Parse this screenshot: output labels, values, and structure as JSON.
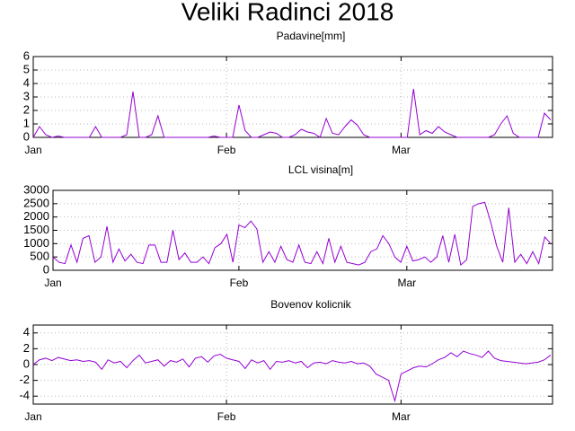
{
  "title": "Veliki Radinci 2018",
  "chart_data": [
    {
      "type": "line",
      "title": "Padavine[mm]",
      "x": [
        0,
        1,
        2,
        3,
        4,
        5,
        6,
        7,
        8,
        9,
        10,
        11,
        12,
        13,
        14,
        15,
        16,
        17,
        18,
        19,
        20,
        21,
        22,
        23,
        24,
        25,
        26,
        27,
        28,
        29,
        30,
        31,
        32,
        33,
        34,
        35,
        36,
        37,
        38,
        39,
        40,
        41,
        42,
        43,
        44,
        45,
        46,
        47,
        48,
        49,
        50,
        51,
        52,
        53,
        54,
        55,
        56,
        57,
        58,
        59,
        60,
        61,
        62,
        63,
        64,
        65,
        66,
        67,
        68,
        69,
        70,
        71,
        72,
        73,
        74,
        75,
        76,
        77,
        78,
        79,
        80,
        81,
        82,
        83
      ],
      "series": [
        {
          "color": "#9400d3",
          "values": [
            0,
            0.8,
            0.2,
            0,
            0.1,
            0,
            0,
            0,
            0,
            0,
            0.8,
            0,
            0,
            0,
            0,
            0.2,
            3.4,
            0,
            0,
            0.2,
            1.6,
            0,
            0,
            0,
            0,
            0,
            0,
            0,
            0,
            0.1,
            0,
            0,
            0,
            2.4,
            0.5,
            0,
            0,
            0.2,
            0.4,
            0.3,
            0,
            0,
            0.2,
            0.6,
            0.4,
            0.3,
            0,
            1.4,
            0.3,
            0.2,
            0.8,
            1.3,
            0.9,
            0.2,
            0,
            0,
            0,
            0,
            0,
            0,
            0,
            3.6,
            0.2,
            0.5,
            0.3,
            0.8,
            0.4,
            0.2,
            0,
            0,
            0,
            0,
            0,
            0,
            0.2,
            1.0,
            1.6,
            0.3,
            0,
            0,
            0,
            0,
            1.8,
            1.3
          ]
        }
      ],
      "xlim": [
        0,
        83.3
      ],
      "xticks": [
        {
          "value": 0,
          "label": "Jan"
        },
        {
          "value": 31,
          "label": "Feb"
        },
        {
          "value": 59,
          "label": "Mar"
        }
      ],
      "ylim": [
        0,
        6
      ],
      "yticks": [
        0,
        1,
        2,
        3,
        4,
        5,
        6
      ],
      "grid": true
    },
    {
      "type": "line",
      "title": "LCL visina[m]",
      "x": [
        0,
        1,
        2,
        3,
        4,
        5,
        6,
        7,
        8,
        9,
        10,
        11,
        12,
        13,
        14,
        15,
        16,
        17,
        18,
        19,
        20,
        21,
        22,
        23,
        24,
        25,
        26,
        27,
        28,
        29,
        30,
        31,
        32,
        33,
        34,
        35,
        36,
        37,
        38,
        39,
        40,
        41,
        42,
        43,
        44,
        45,
        46,
        47,
        48,
        49,
        50,
        51,
        52,
        53,
        54,
        55,
        56,
        57,
        58,
        59,
        60,
        61,
        62,
        63,
        64,
        65,
        66,
        67,
        68,
        69,
        70,
        71,
        72,
        73,
        74,
        75,
        76,
        77,
        78,
        79,
        80,
        81,
        82,
        83
      ],
      "series": [
        {
          "color": "#9400d3",
          "values": [
            500,
            300,
            250,
            950,
            300,
            1200,
            1300,
            300,
            500,
            1650,
            300,
            800,
            350,
            600,
            300,
            250,
            950,
            950,
            300,
            300,
            1500,
            400,
            650,
            300,
            300,
            500,
            250,
            850,
            1000,
            1350,
            300,
            1700,
            1600,
            1850,
            1550,
            300,
            700,
            300,
            900,
            400,
            300,
            950,
            300,
            250,
            700,
            250,
            1200,
            300,
            900,
            300,
            250,
            200,
            300,
            700,
            800,
            1300,
            1000,
            500,
            300,
            900,
            350,
            400,
            500,
            300,
            500,
            1300,
            300,
            1350,
            200,
            400,
            2400,
            2500,
            2550,
            1800,
            900,
            300,
            2350,
            300,
            600,
            250,
            700,
            250,
            1250,
            1000
          ]
        }
      ],
      "xlim": [
        0,
        83.3
      ],
      "xticks": [
        {
          "value": 0,
          "label": "Jan"
        },
        {
          "value": 31,
          "label": "Feb"
        },
        {
          "value": 59,
          "label": "Mar"
        }
      ],
      "ylim": [
        0,
        3000
      ],
      "yticks": [
        0,
        500,
        1000,
        1500,
        2000,
        2500,
        3000
      ],
      "grid": true
    },
    {
      "type": "line",
      "title": "Bovenov kolicnik",
      "x": [
        0,
        1,
        2,
        3,
        4,
        5,
        6,
        7,
        8,
        9,
        10,
        11,
        12,
        13,
        14,
        15,
        16,
        17,
        18,
        19,
        20,
        21,
        22,
        23,
        24,
        25,
        26,
        27,
        28,
        29,
        30,
        31,
        32,
        33,
        34,
        35,
        36,
        37,
        38,
        39,
        40,
        41,
        42,
        43,
        44,
        45,
        46,
        47,
        48,
        49,
        50,
        51,
        52,
        53,
        54,
        55,
        56,
        57,
        58,
        59,
        60,
        61,
        62,
        63,
        64,
        65,
        66,
        67,
        68,
        69,
        70,
        71,
        72,
        73,
        74,
        75,
        76,
        77,
        78,
        79,
        80,
        81,
        82,
        83
      ],
      "series": [
        {
          "color": "#9400d3",
          "values": [
            0,
            0.6,
            0.8,
            0.5,
            0.9,
            0.7,
            0.5,
            0.6,
            0.4,
            0.5,
            0.3,
            -0.6,
            0.6,
            0.2,
            0.4,
            -0.4,
            0.5,
            1.2,
            0.2,
            0.4,
            0.6,
            -0.2,
            0.5,
            0.3,
            0.7,
            -0.3,
            0.8,
            1.0,
            0.3,
            1.1,
            1.3,
            0.8,
            0.6,
            0.4,
            -0.5,
            0.6,
            0.2,
            0.5,
            -0.6,
            0.4,
            0.3,
            0.5,
            0.2,
            0.4,
            -0.4,
            0.2,
            0.3,
            0.1,
            0.5,
            0.3,
            0.2,
            0.4,
            0.1,
            0.2,
            -0.2,
            -1.2,
            -1.6,
            -2.0,
            -4.6,
            -1.2,
            -0.8,
            -0.4,
            -0.2,
            -0.3,
            0.1,
            0.6,
            0.9,
            1.5,
            1.0,
            1.7,
            1.4,
            1.2,
            0.9,
            1.7,
            0.8,
            0.5,
            0.4,
            0.3,
            0.2,
            0.1,
            0.2,
            0.3,
            0.6,
            1.2
          ]
        }
      ],
      "xlim": [
        0,
        83.3
      ],
      "xticks": [
        {
          "value": 0,
          "label": "Jan"
        },
        {
          "value": 31,
          "label": "Feb"
        },
        {
          "value": 59,
          "label": "Mar"
        }
      ],
      "ylim": [
        -5,
        5
      ],
      "yticks": [
        -4,
        -2,
        0,
        2,
        4
      ],
      "grid": true
    }
  ]
}
